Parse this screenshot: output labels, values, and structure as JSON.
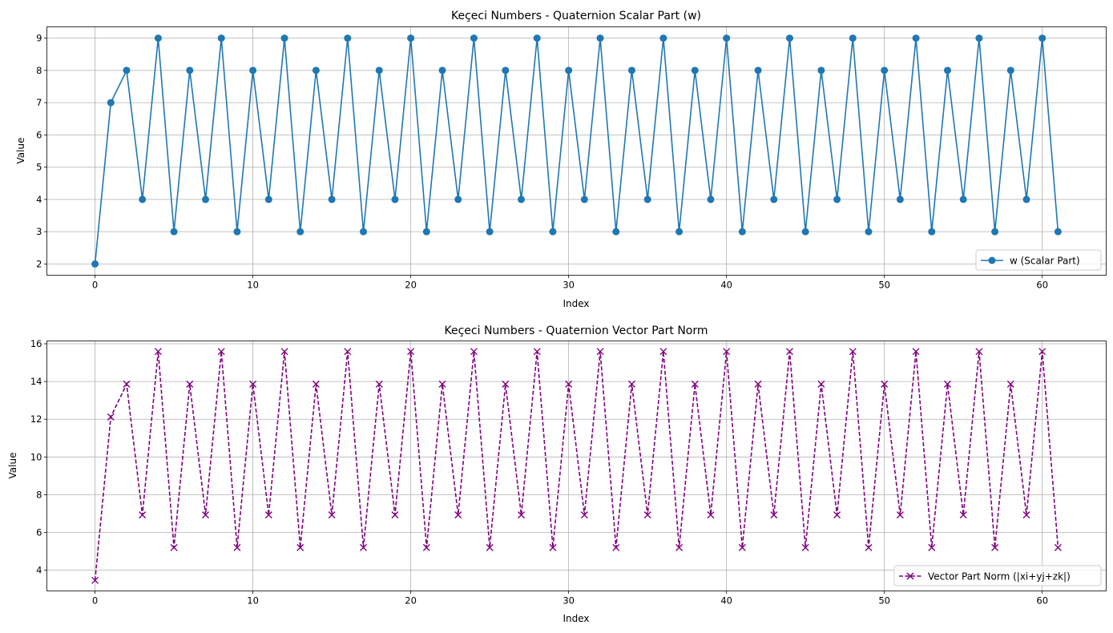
{
  "chart_data": [
    {
      "type": "line",
      "title": "Keçeci Numbers - Quaternion Scalar Part (w)",
      "xlabel": "Index",
      "ylabel": "Value",
      "xlim": [
        -3.05,
        64.05
      ],
      "ylim": [
        1.65,
        9.35
      ],
      "xticks": [
        0,
        10,
        20,
        30,
        40,
        50,
        60
      ],
      "yticks": [
        2,
        3,
        4,
        5,
        6,
        7,
        8,
        9
      ],
      "grid": true,
      "legend_position": "lower right",
      "series": [
        {
          "name": "w (Scalar Part)",
          "color": "#1f77b4",
          "linestyle": "solid",
          "marker": "circle",
          "values": [
            2,
            7,
            8,
            4,
            9,
            3,
            8,
            4,
            9,
            3,
            8,
            4,
            9,
            3,
            8,
            4,
            9,
            3,
            8,
            4,
            9,
            3,
            8,
            4,
            9,
            3,
            8,
            4,
            9,
            3,
            8,
            4,
            9,
            3,
            8,
            4,
            9,
            3,
            8,
            4,
            9,
            3,
            8,
            4,
            9,
            3,
            8,
            4,
            9,
            3,
            8,
            4,
            9,
            3,
            8,
            4,
            9,
            3,
            8,
            4,
            9,
            3
          ]
        }
      ]
    },
    {
      "type": "line",
      "title": "Keçeci Numbers - Quaternion Vector Part Norm",
      "xlabel": "Index",
      "ylabel": "Value",
      "xlim": [
        -3.05,
        64.05
      ],
      "ylim": [
        2.9,
        16.15
      ],
      "xticks": [
        0,
        10,
        20,
        30,
        40,
        50,
        60
      ],
      "yticks": [
        4,
        6,
        8,
        10,
        12,
        14,
        16
      ],
      "grid": true,
      "legend_position": "lower right",
      "series": [
        {
          "name": "Vector Part Norm (|xi+yj+zk|)",
          "color": "#800080",
          "linestyle": "dashed",
          "marker": "x",
          "values": [
            3.46,
            12.12,
            13.86,
            6.93,
            15.59,
            5.2,
            13.86,
            6.93,
            15.59,
            5.2,
            13.86,
            6.93,
            15.59,
            5.2,
            13.86,
            6.93,
            15.59,
            5.2,
            13.86,
            6.93,
            15.59,
            5.2,
            13.86,
            6.93,
            15.59,
            5.2,
            13.86,
            6.93,
            15.59,
            5.2,
            13.86,
            6.93,
            15.59,
            5.2,
            13.86,
            6.93,
            15.59,
            5.2,
            13.86,
            6.93,
            15.59,
            5.2,
            13.86,
            6.93,
            15.59,
            5.2,
            13.86,
            6.93,
            15.59,
            5.2,
            13.86,
            6.93,
            15.59,
            5.2,
            13.86,
            6.93,
            15.59,
            5.2,
            13.86,
            6.93,
            15.59,
            5.2
          ]
        }
      ]
    }
  ]
}
